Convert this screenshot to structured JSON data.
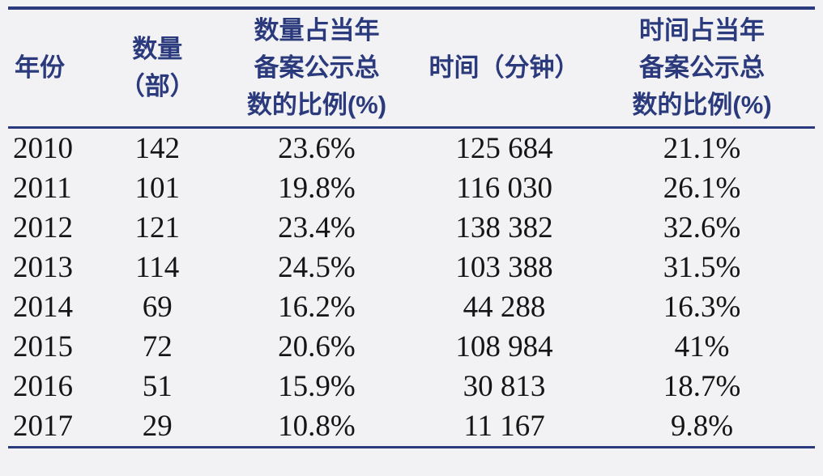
{
  "page": {
    "background": "#f2f2f4"
  },
  "colors": {
    "header_text": "#2b3a7c",
    "rule": "#2b3a7c",
    "body_text": "#151515"
  },
  "table": {
    "columns": [
      "年份",
      "数量（部）",
      "数量占当年\n备案公示总\n数的比例(%)",
      "时间（分钟）",
      "时间占当年\n备案公示总\n数的比例(%)"
    ],
    "rows": [
      [
        "2010",
        "142",
        "23.6%",
        "125 684",
        "21.1%"
      ],
      [
        "2011",
        "101",
        "19.8%",
        "116 030",
        "26.1%"
      ],
      [
        "2012",
        "121",
        "23.4%",
        "138 382",
        "32.6%"
      ],
      [
        "2013",
        "114",
        "24.5%",
        "103 388",
        "31.5%"
      ],
      [
        "2014",
        "69",
        "16.2%",
        "44 288",
        "16.3%"
      ],
      [
        "2015",
        "72",
        "20.6%",
        "108 984",
        "41%"
      ],
      [
        "2016",
        "51",
        "15.9%",
        "30 813",
        "18.7%"
      ],
      [
        "2017",
        "29",
        "10.8%",
        "11 167",
        "9.8%"
      ]
    ]
  }
}
